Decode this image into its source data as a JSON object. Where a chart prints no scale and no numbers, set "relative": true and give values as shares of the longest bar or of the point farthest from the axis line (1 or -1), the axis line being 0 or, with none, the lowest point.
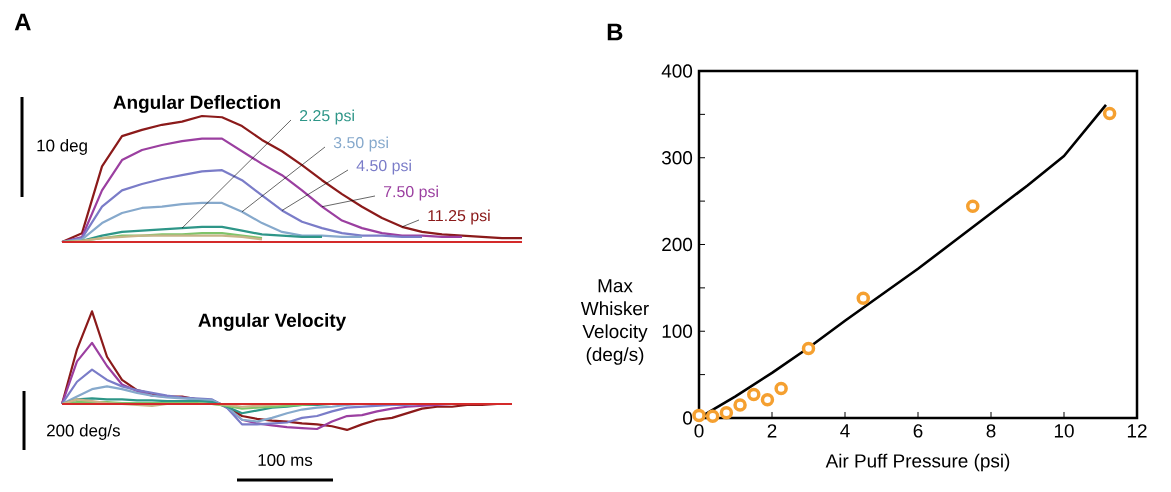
{
  "chart_data": [
    {
      "type": "line",
      "relative": true,
      "title": "Angular Deflection",
      "annotations": [
        "A",
        "10 deg"
      ],
      "categories": [
        null,
        null,
        null,
        null,
        null,
        null,
        null,
        null,
        null,
        null,
        null,
        null,
        null,
        null,
        null,
        null,
        null,
        null,
        null,
        null,
        null,
        null,
        null,
        null
      ],
      "series": [
        {
          "name": "11.25 psi",
          "color": "#8b1a1a",
          "values": [
            0,
            0.07,
            0.6,
            0.84,
            0.89,
            0.93,
            0.955,
            1,
            0.99,
            0.92,
            0.81,
            0.72,
            0.61,
            0.49,
            0.38,
            0.28,
            0.19,
            0.12,
            0.08,
            0.06,
            0.05,
            0.04,
            0.03,
            0.03
          ]
        },
        {
          "name": "7.50 psi",
          "color": "#9b3fa0",
          "values": [
            0,
            0.04,
            0.41,
            0.65,
            0.73,
            0.77,
            0.8,
            0.82,
            0.82,
            0.72,
            0.62,
            0.53,
            0.41,
            0.28,
            0.17,
            0.11,
            0.07,
            0.05,
            0.05,
            0.04,
            0.04,
            null,
            null,
            null
          ]
        },
        {
          "name": "4.50 psi",
          "color": "#7a7cc8",
          "values": [
            0,
            0.03,
            0.28,
            0.41,
            0.46,
            0.5,
            0.53,
            0.56,
            0.57,
            0.49,
            0.37,
            0.25,
            0.16,
            0.11,
            0.07,
            0.05,
            0.05,
            0.04,
            0.04,
            null,
            null,
            null,
            null,
            null
          ]
        },
        {
          "name": "3.50 psi",
          "color": "#86a9cc",
          "values": [
            0,
            0.02,
            0.15,
            0.23,
            0.27,
            0.28,
            0.3,
            0.31,
            0.31,
            0.24,
            0.15,
            0.08,
            0.05,
            0.05,
            0.04,
            0.04,
            null,
            null,
            null,
            null,
            null,
            null,
            null,
            null
          ]
        },
        {
          "name": "2.25 psi",
          "color": "#2e9688",
          "values": [
            0,
            0.01,
            0.05,
            0.08,
            0.09,
            0.1,
            0.11,
            0.12,
            0.12,
            0.09,
            0.06,
            0.05,
            0.04,
            0.04,
            null,
            null,
            null,
            null,
            null,
            null,
            null,
            null,
            null,
            null
          ]
        },
        {
          "color": "#7fc46a",
          "values": [
            0,
            0.01,
            0.03,
            0.05,
            0.05,
            0.06,
            0.06,
            0.07,
            0.07,
            0.05,
            0.03,
            null,
            null,
            null,
            null,
            null,
            null,
            null,
            null,
            null,
            null,
            null,
            null,
            null
          ]
        },
        {
          "color": "#c8b488",
          "values": [
            0,
            0.01,
            0.03,
            0.04,
            0.05,
            0.05,
            0.05,
            0.05,
            0.05,
            0.04,
            0.02,
            null,
            null,
            null,
            null,
            null,
            null,
            null,
            null,
            null,
            null,
            null,
            null,
            null
          ]
        },
        {
          "color": "#d42a2a",
          "values": [
            0,
            0,
            0,
            0,
            0,
            0,
            0,
            0,
            0,
            0,
            0,
            0,
            0,
            0,
            0,
            0,
            0,
            0,
            0,
            0,
            0,
            0,
            0,
            0
          ]
        }
      ]
    },
    {
      "type": "line",
      "relative": true,
      "title": "Angular Velocity",
      "annotations": [
        "200 deg/s",
        "100 ms"
      ],
      "categories": [
        null,
        null,
        null,
        null,
        null,
        null,
        null,
        null,
        null,
        null,
        null,
        null,
        null,
        null,
        null,
        null,
        null,
        null,
        null,
        null,
        null,
        null,
        null,
        null,
        null,
        null,
        null,
        null,
        null,
        null,
        null
      ],
      "series": [
        {
          "color": "#8b1a1a",
          "values": [
            0,
            0.59,
            1,
            0.51,
            0.26,
            0.15,
            0.11,
            0.08,
            0.08,
            0.05,
            0.04,
            -0.03,
            -0.13,
            -0.16,
            -0.18,
            -0.19,
            -0.21,
            -0.22,
            -0.24,
            -0.28,
            -0.22,
            -0.17,
            -0.15,
            -0.1,
            -0.05,
            -0.03,
            -0.03,
            -0.01,
            -0.01,
            0,
            null
          ]
        },
        {
          "color": "#9b3fa0",
          "values": [
            0,
            0.46,
            0.66,
            0.41,
            0.21,
            0.14,
            0.09,
            0.08,
            0.07,
            0.05,
            0.04,
            -0.04,
            -0.17,
            -0.21,
            -0.23,
            -0.25,
            -0.26,
            -0.27,
            -0.19,
            -0.13,
            -0.12,
            -0.08,
            -0.05,
            -0.03,
            -0.02,
            -0.01,
            0,
            null,
            null,
            null,
            null
          ]
        },
        {
          "color": "#7a7cc8",
          "values": [
            0,
            0.24,
            0.37,
            0.26,
            0.19,
            0.15,
            0.12,
            0.09,
            0.07,
            0.06,
            0.05,
            -0.04,
            -0.22,
            -0.22,
            -0.21,
            -0.2,
            -0.15,
            -0.13,
            -0.08,
            -0.04,
            -0.03,
            -0.02,
            -0.01,
            -0.01,
            0,
            null,
            null,
            null,
            null,
            null,
            null
          ]
        },
        {
          "color": "#86a9cc",
          "values": [
            0,
            0.08,
            0.16,
            0.19,
            0.16,
            0.12,
            0.09,
            0.07,
            0.06,
            0.05,
            0.04,
            -0.03,
            -0.17,
            -0.19,
            -0.15,
            -0.1,
            -0.06,
            -0.04,
            -0.03,
            -0.01,
            0,
            null,
            null,
            null,
            null,
            null,
            null,
            null,
            null,
            null,
            null
          ]
        },
        {
          "color": "#2e9688",
          "values": [
            0,
            0.05,
            0.06,
            0.05,
            0.05,
            0.04,
            0.04,
            0.03,
            0.03,
            0.03,
            0.02,
            -0.03,
            -0.1,
            -0.07,
            -0.04,
            -0.03,
            -0.01,
            -0.01,
            0,
            null,
            null,
            null,
            null,
            null,
            null,
            null,
            null,
            null,
            null,
            null,
            null
          ]
        },
        {
          "color": "#7fc46a",
          "values": [
            0,
            0.02,
            0.02,
            0.02,
            0.01,
            0.01,
            0.01,
            0.01,
            0.01,
            0.01,
            0,
            -0.02,
            -0.05,
            -0.04,
            -0.03,
            -0.02,
            -0.01,
            0,
            null,
            null,
            null,
            null,
            null,
            null,
            null,
            null,
            null,
            null,
            null,
            null,
            null
          ]
        },
        {
          "color": "#c8b488",
          "values": [
            0,
            0.05,
            0.03,
            0.01,
            0,
            -0.01,
            -0.02,
            0,
            0,
            0,
            0,
            -0.01,
            -0.03,
            -0.02,
            -0.01,
            0,
            null,
            null,
            null,
            null,
            null,
            null,
            null,
            null,
            null,
            null,
            null,
            null,
            null,
            null,
            null
          ]
        },
        {
          "color": "#d42a2a",
          "values": [
            0,
            0,
            0,
            0,
            0,
            0,
            0,
            0,
            0,
            0,
            0,
            0,
            0,
            0,
            0,
            0,
            0,
            0,
            0,
            0,
            0,
            0,
            0,
            0,
            0,
            0,
            0,
            0,
            0,
            0,
            0
          ]
        }
      ]
    },
    {
      "type": "scatter",
      "xlabel": "Air Puff Pressure (psi)",
      "ylabel": "Max Whisker Velocity (deg/s)",
      "annotations": [
        "B"
      ],
      "xlim": [
        0,
        12
      ],
      "ylim": [
        0,
        400
      ],
      "xticks": [
        0,
        2,
        4,
        6,
        8,
        10,
        12
      ],
      "yticks": [
        0,
        {
          "value": 50,
          "label": null
        },
        100,
        {
          "value": 150,
          "label": null
        },
        200,
        {
          "value": 250,
          "label": null
        },
        300,
        {
          "value": 350,
          "label": null
        },
        400
      ],
      "series": [
        {
          "type": "line",
          "color": "#000000",
          "marker": "none",
          "x": [
            0,
            1,
            2,
            3,
            4,
            5,
            6,
            7,
            8,
            9,
            10,
            11.15
          ],
          "values": [
            0,
            25,
            52,
            81,
            112,
            142,
            172,
            204,
            236,
            268,
            302,
            361
          ]
        },
        {
          "type": "scatter",
          "color": "#f5a030",
          "marker": "circle",
          "x": [
            0,
            0.375,
            0.75,
            1.125,
            1.5,
            1.875,
            2.25,
            3,
            4.5,
            7.5,
            11.25
          ],
          "values": [
            3,
            2,
            6,
            15,
            27,
            21,
            34,
            80,
            138,
            244,
            351
          ]
        }
      ]
    }
  ]
}
